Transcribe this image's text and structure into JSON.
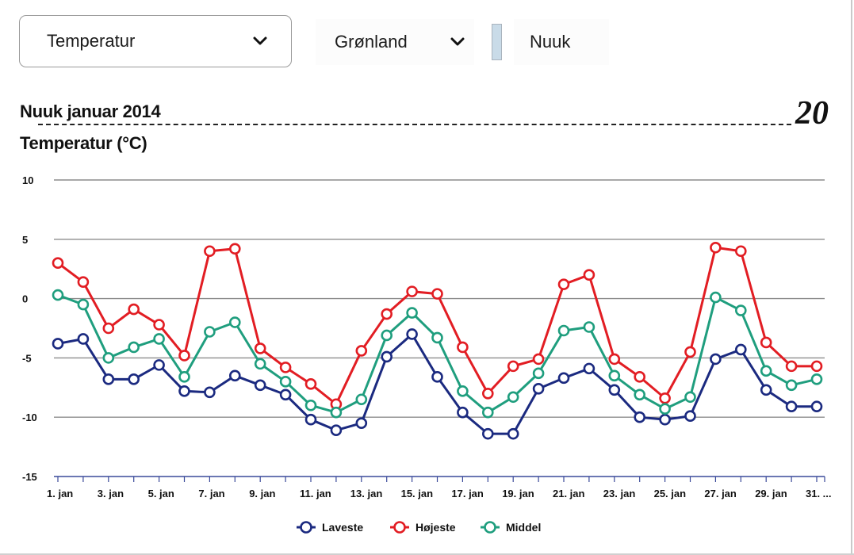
{
  "toolbar": {
    "measure_select": {
      "label": "Temperatur",
      "icon": "chevron-down-icon"
    },
    "country_select": {
      "label": "Grønland",
      "icon": "chevron-down-icon"
    },
    "city": {
      "label": "Nuuk"
    }
  },
  "page_number": "20",
  "chart_data": {
    "type": "line",
    "title": "Nuuk januar 2014",
    "ylabel": "Temperatur (°C)",
    "xlabel": "",
    "ylim": [
      -15,
      10
    ],
    "yticks": [
      10,
      5,
      0,
      -5,
      -10,
      -15
    ],
    "grid": true,
    "legend_position": "bottom-center",
    "x": [
      1,
      2,
      3,
      4,
      5,
      6,
      7,
      8,
      9,
      10,
      11,
      12,
      13,
      14,
      15,
      16,
      17,
      18,
      19,
      20,
      21,
      22,
      23,
      24,
      25,
      26,
      27,
      28,
      29,
      30,
      31
    ],
    "xtick_labels": [
      "1. jan",
      "3. jan",
      "5. jan",
      "7. jan",
      "9. jan",
      "11. jan",
      "13. jan",
      "15. jan",
      "17. jan",
      "19. jan",
      "21. jan",
      "23. jan",
      "25. jan",
      "27. jan",
      "29. jan",
      "31. ..."
    ],
    "xtick_positions": [
      1,
      3,
      5,
      7,
      9,
      11,
      13,
      15,
      17,
      19,
      21,
      23,
      25,
      27,
      29,
      31
    ],
    "series": [
      {
        "name": "Laveste",
        "color": "#1b2a80",
        "values": [
          -3.8,
          -3.4,
          -6.8,
          -6.8,
          -5.6,
          -7.8,
          -7.9,
          -6.5,
          -7.3,
          -8.1,
          -10.2,
          -11.1,
          -10.5,
          -4.9,
          -3.0,
          -6.6,
          -9.6,
          -11.4,
          -11.4,
          -7.6,
          -6.7,
          -5.9,
          -7.7,
          -10.0,
          -10.2,
          -9.9,
          -5.1,
          -4.3,
          -7.7,
          -9.1,
          -9.1
        ]
      },
      {
        "name": "Højeste",
        "color": "#e21d23",
        "values": [
          3.0,
          1.4,
          -2.5,
          -0.9,
          -2.2,
          -4.8,
          4.0,
          4.2,
          -4.2,
          -5.8,
          -7.2,
          -8.9,
          -4.4,
          -1.3,
          0.6,
          0.4,
          -4.1,
          -8.0,
          -5.7,
          -5.1,
          1.2,
          2.0,
          -5.1,
          -6.6,
          -8.4,
          -4.5,
          4.3,
          4.0,
          -3.7,
          -5.7,
          -5.7
        ]
      },
      {
        "name": "Middel",
        "color": "#1f9e7e",
        "values": [
          0.3,
          -0.5,
          -5.0,
          -4.1,
          -3.4,
          -6.6,
          -2.8,
          -2.0,
          -5.5,
          -7.0,
          -9.0,
          -9.6,
          -8.5,
          -3.1,
          -1.2,
          -3.3,
          -7.8,
          -9.6,
          -8.3,
          -6.3,
          -2.7,
          -2.4,
          -6.5,
          -8.1,
          -9.3,
          -8.3,
          0.1,
          -1.0,
          -6.1,
          -7.3,
          -6.8
        ]
      }
    ]
  }
}
